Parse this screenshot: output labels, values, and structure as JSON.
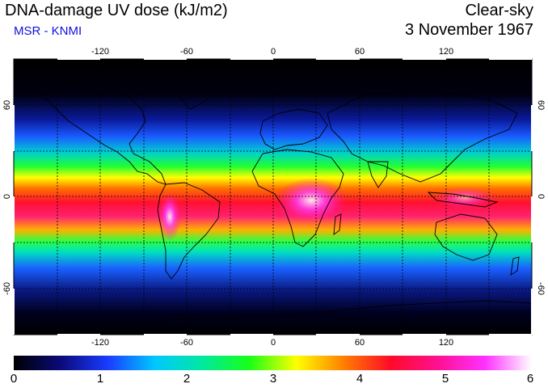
{
  "header": {
    "title": "DNA-damage UV dose (kJ/m2)",
    "subtitle": "MSR - KNMI",
    "condition": "Clear-sky",
    "date": "3 November 1967"
  },
  "colors": {
    "subtitle": "#1010e0",
    "ocean_dark": "#000000",
    "land_outline": "#000000"
  },
  "map": {
    "lon_ticks": [
      "-120",
      "-60",
      "0",
      "60",
      "120"
    ],
    "lat_ticks": [
      "60",
      "0",
      "-60"
    ],
    "lat_ticks_right": [
      "60",
      "0",
      "-60"
    ]
  },
  "colorbar": {
    "labels": [
      "0",
      "1",
      "2",
      "3",
      "4",
      "5",
      "6"
    ],
    "stops": [
      "#000000",
      "#0a0a7a",
      "#1a3cff",
      "#00c8ff",
      "#00e8a0",
      "#18ff18",
      "#ffff00",
      "#ff8000",
      "#ff0a28",
      "#ff1090",
      "#ff30ff",
      "#ffffff"
    ]
  }
}
